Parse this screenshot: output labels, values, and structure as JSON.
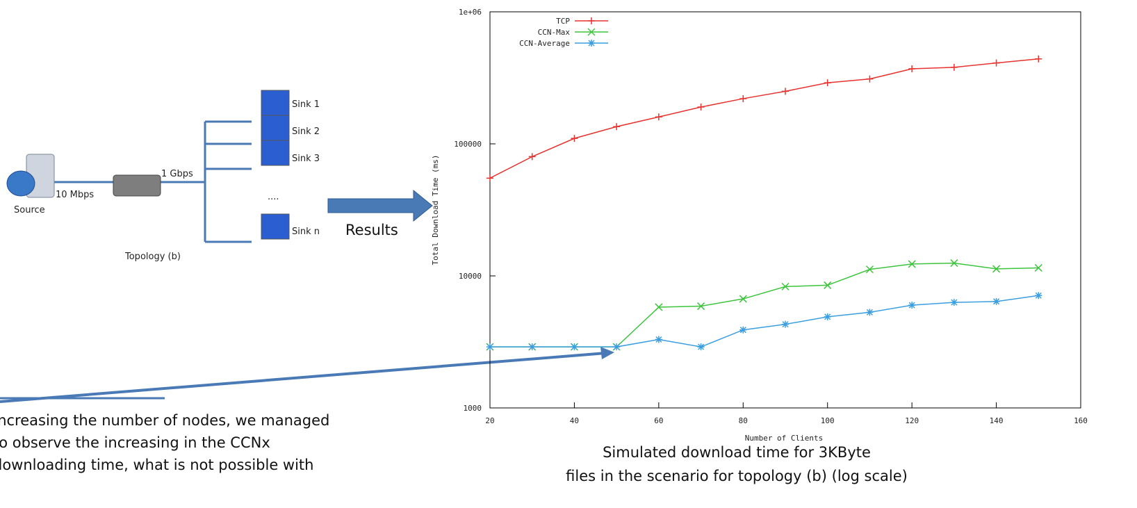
{
  "chart_data": {
    "type": "line",
    "x": [
      20,
      30,
      40,
      50,
      60,
      70,
      80,
      90,
      100,
      110,
      120,
      130,
      140,
      150
    ],
    "series": [
      {
        "name": "TCP",
        "color": "#e8322e",
        "marker": "plus",
        "values": [
          55000,
          80000,
          110000,
          135000,
          160000,
          190000,
          220000,
          250000,
          290000,
          310000,
          370000,
          380000,
          410000,
          440000
        ]
      },
      {
        "name": "CCN-Max",
        "color": "#3cc43c",
        "marker": "cross",
        "values": [
          2900,
          2900,
          2900,
          2900,
          5800,
          5900,
          6700,
          8300,
          8500,
          11200,
          12300,
          12500,
          11300,
          11500
        ]
      },
      {
        "name": "CCN-Average",
        "color": "#3a9ee0",
        "marker": "star",
        "values": [
          2900,
          2900,
          2900,
          2900,
          3300,
          2900,
          3900,
          4300,
          4900,
          5300,
          6000,
          6300,
          6400,
          7100
        ]
      }
    ],
    "xlim": [
      20,
      160
    ],
    "xticks": [
      20,
      40,
      60,
      80,
      100,
      120,
      140,
      160
    ],
    "ylim": [
      1000,
      1000000
    ],
    "log_scale_y": true,
    "yticks": [
      1000,
      10000,
      100000,
      {
        "value": 1000000,
        "label": "1e+06"
      }
    ],
    "x_label": "Number of Clients",
    "y_label": "Total Download Time (ms)",
    "legend": "top-left",
    "caption": [
      "Simulated download time for 3KByte",
      "files in the scenario for topology (b)  (log scale)"
    ]
  },
  "diagram": {
    "source": "Source",
    "link_source": "10 Mbps",
    "link_router": "1 Gbps",
    "sinks": [
      "Sink 1",
      "Sink 2",
      "Sink 3",
      "....",
      "Sink n"
    ],
    "title": "Topology (b)",
    "arrow_label": "Results"
  },
  "annotation": [
    "Increasing the number of nodes, we managed",
    "to observe the increasing in the CCNx",
    "downloading time, what is not possible with"
  ]
}
